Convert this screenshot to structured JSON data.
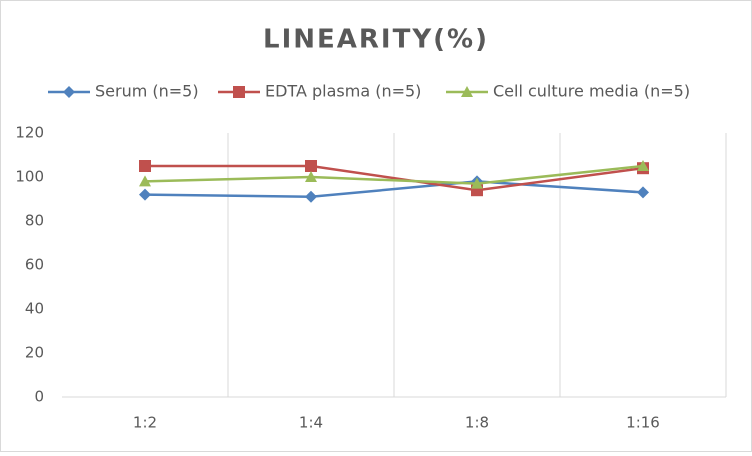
{
  "chart_data": {
    "type": "line",
    "title": "LINEARITY(%)",
    "categories": [
      "1:2",
      "1:4",
      "1:8",
      "1:16"
    ],
    "series": [
      {
        "name": "Serum (n=5)",
        "color": "#4f81bd",
        "marker": "diamond",
        "values": [
          92,
          91,
          98,
          93
        ]
      },
      {
        "name": "EDTA plasma (n=5)",
        "color": "#c0504d",
        "marker": "square",
        "values": [
          105,
          105,
          94,
          104
        ]
      },
      {
        "name": "Cell culture media (n=5)",
        "color": "#9bbb59",
        "marker": "triangle",
        "values": [
          98,
          100,
          97,
          105
        ]
      }
    ],
    "ylim": [
      0,
      120
    ],
    "yticks": [
      0,
      20,
      40,
      60,
      80,
      100,
      120
    ],
    "grid": "vertical",
    "legend": "top"
  }
}
